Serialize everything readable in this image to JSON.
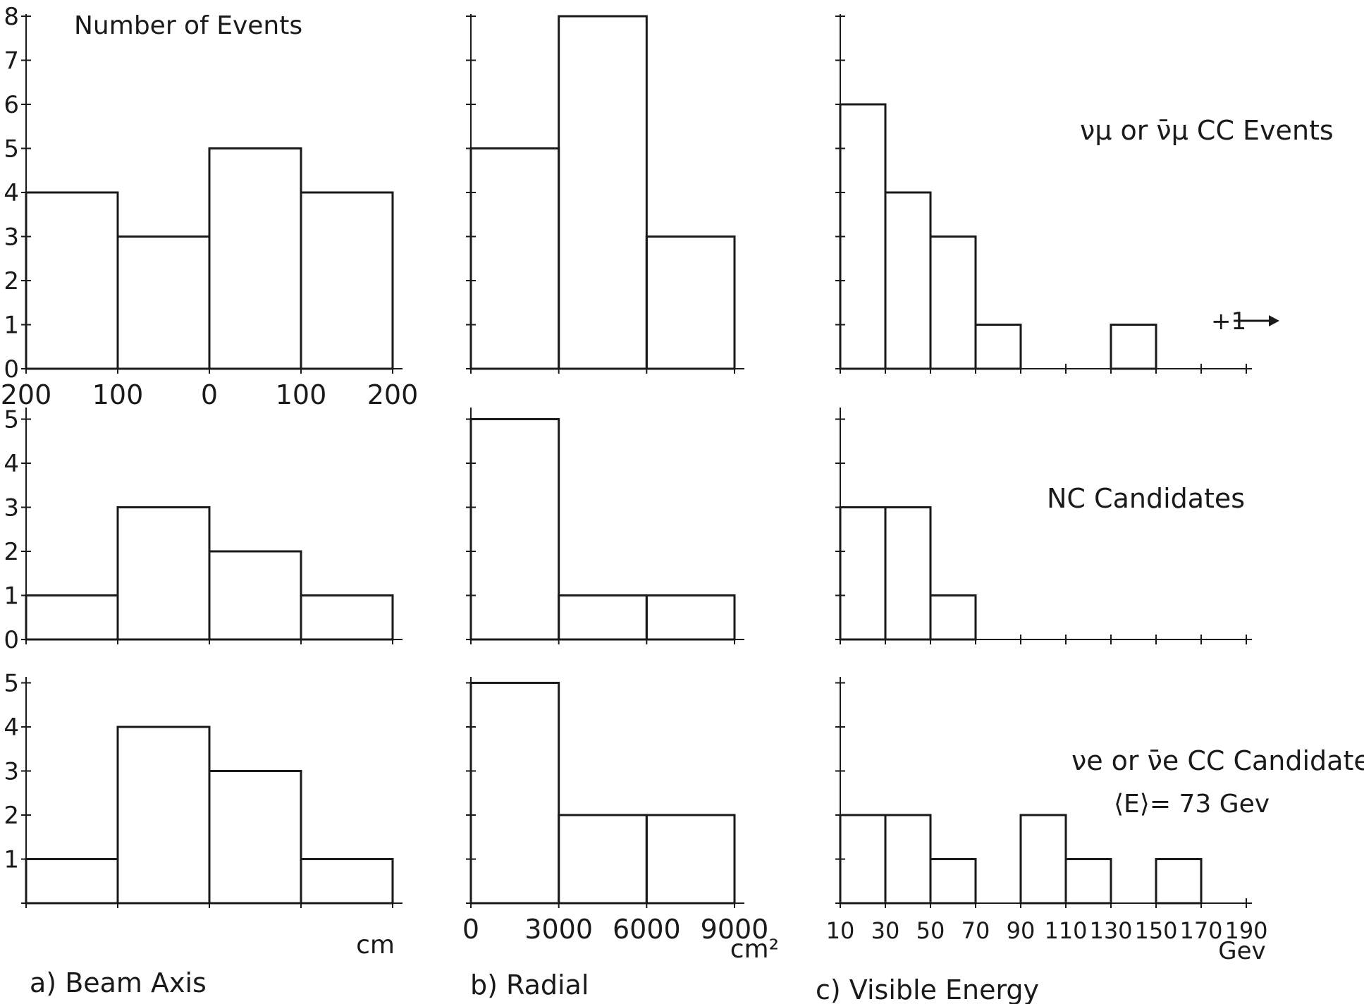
{
  "y_axis_label": "Number of Events",
  "legend_arrow_label": "+1",
  "column_captions": [
    "a) Beam Axis",
    "b) Radial",
    "c) Visible Energy"
  ],
  "axis_units": [
    "cm",
    "cm²",
    "Gev"
  ],
  "row_labels": [
    "νμ or ν̄μ CC Events",
    "NC Candidates",
    "νe or ν̄e CC Candidates"
  ],
  "mean_energy_label": "⟨E⟩= 73 Gev",
  "ink_color": "#1a1a1a",
  "chart_data": [
    {
      "type": "bar",
      "xlabel": "Beam Axis",
      "xunit": "cm",
      "bin_edges": [
        -200,
        -100,
        0,
        100,
        200
      ],
      "values": [
        4,
        3,
        5,
        4
      ],
      "ylim": [
        0,
        8
      ],
      "xticks": [
        "200",
        "100",
        "0",
        "100",
        "200"
      ],
      "yticks": [
        "0",
        "1",
        "2",
        "3",
        "4",
        "5",
        "6",
        "7",
        "8"
      ]
    },
    {
      "type": "bar",
      "xlabel": "Radial",
      "xunit": "cm²",
      "bin_edges": [
        0,
        3000,
        6000,
        9000
      ],
      "values": [
        5,
        8,
        3
      ],
      "ylim": [
        0,
        8
      ]
    },
    {
      "type": "bar",
      "xlabel": "Visible Energy",
      "xunit": "Gev",
      "bin_edges": [
        10,
        30,
        50,
        70,
        90,
        110,
        130,
        150,
        170,
        190
      ],
      "values": [
        6,
        4,
        3,
        1,
        0,
        0,
        1,
        0,
        0
      ],
      "ylim": [
        0,
        8
      ],
      "annotation": "+1"
    },
    {
      "type": "bar",
      "xlabel": "Beam Axis",
      "xunit": "cm",
      "bin_edges": [
        -200,
        -100,
        0,
        100,
        200
      ],
      "values": [
        1,
        3,
        2,
        1
      ],
      "ylim": [
        0,
        5
      ],
      "yticks": [
        "0",
        "1",
        "2",
        "3",
        "4",
        "5"
      ]
    },
    {
      "type": "bar",
      "xlabel": "Radial",
      "xunit": "cm²",
      "bin_edges": [
        0,
        3000,
        6000,
        9000
      ],
      "values": [
        5,
        1,
        1
      ],
      "ylim": [
        0,
        5
      ]
    },
    {
      "type": "bar",
      "xlabel": "Visible Energy",
      "xunit": "Gev",
      "bin_edges": [
        10,
        30,
        50,
        70
      ],
      "values": [
        3,
        3,
        1
      ],
      "ylim": [
        0,
        5
      ]
    },
    {
      "type": "bar",
      "xlabel": "Beam Axis",
      "xunit": "cm",
      "bin_edges": [
        -200,
        -100,
        0,
        100,
        200
      ],
      "values": [
        1,
        4,
        3,
        1
      ],
      "ylim": [
        0,
        5
      ],
      "yticks": [
        "1",
        "2",
        "3",
        "4",
        "5"
      ]
    },
    {
      "type": "bar",
      "xlabel": "Radial",
      "xunit": "cm²",
      "bin_edges": [
        0,
        3000,
        6000,
        9000
      ],
      "values": [
        5,
        2,
        2
      ],
      "ylim": [
        0,
        5
      ],
      "xticks": [
        "0",
        "3000",
        "6000",
        "9000"
      ]
    },
    {
      "type": "bar",
      "xlabel": "Visible Energy",
      "xunit": "Gev",
      "bin_edges": [
        10,
        30,
        50,
        70,
        90,
        110,
        130,
        150,
        170
      ],
      "values": [
        2,
        2,
        1,
        0,
        2,
        1,
        0,
        1
      ],
      "ylim": [
        0,
        5
      ],
      "xticks": [
        "10",
        "30",
        "50",
        "70",
        "90",
        "110",
        "130",
        "150",
        "170",
        "190"
      ]
    }
  ]
}
